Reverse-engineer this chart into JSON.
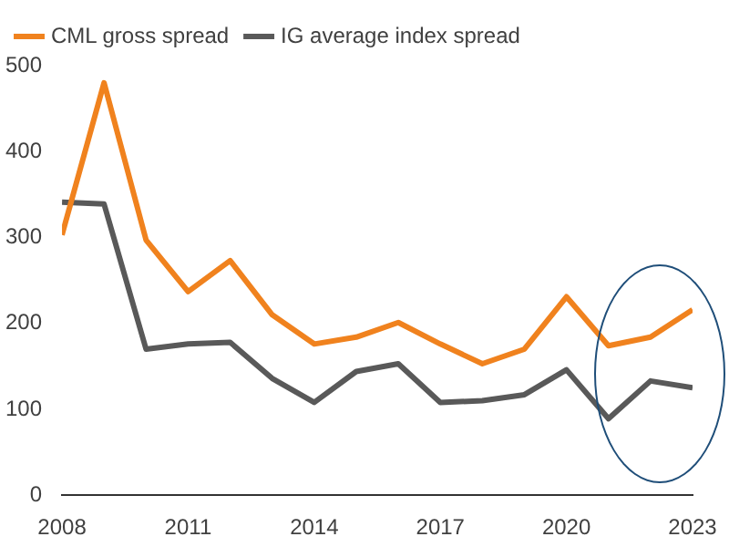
{
  "chart_data": {
    "type": "line",
    "x": [
      2008,
      2009,
      2010,
      2011,
      2012,
      2013,
      2014,
      2015,
      2016,
      2017,
      2018,
      2019,
      2020,
      2021,
      2022,
      2023
    ],
    "series": [
      {
        "name": "CML gross spread",
        "color": "#f0821e",
        "values": [
          303,
          480,
          297,
          237,
          273,
          210,
          176,
          184,
          201,
          176,
          153,
          170,
          231,
          174,
          184,
          216
        ]
      },
      {
        "name": "IG average index spread",
        "color": "#595959",
        "values": [
          341,
          339,
          170,
          176,
          178,
          136,
          108,
          144,
          153,
          108,
          110,
          117,
          146,
          89,
          133,
          125
        ]
      }
    ],
    "xlim": [
      2008,
      2023
    ],
    "xticks": [
      2008,
      2011,
      2014,
      2017,
      2020,
      2023
    ],
    "ylim": [
      0,
      500
    ],
    "yticks": [
      0,
      100,
      200,
      300,
      400,
      500
    ],
    "grid": false,
    "legend": "top left",
    "marker": "none",
    "line_style": "solid"
  }
}
